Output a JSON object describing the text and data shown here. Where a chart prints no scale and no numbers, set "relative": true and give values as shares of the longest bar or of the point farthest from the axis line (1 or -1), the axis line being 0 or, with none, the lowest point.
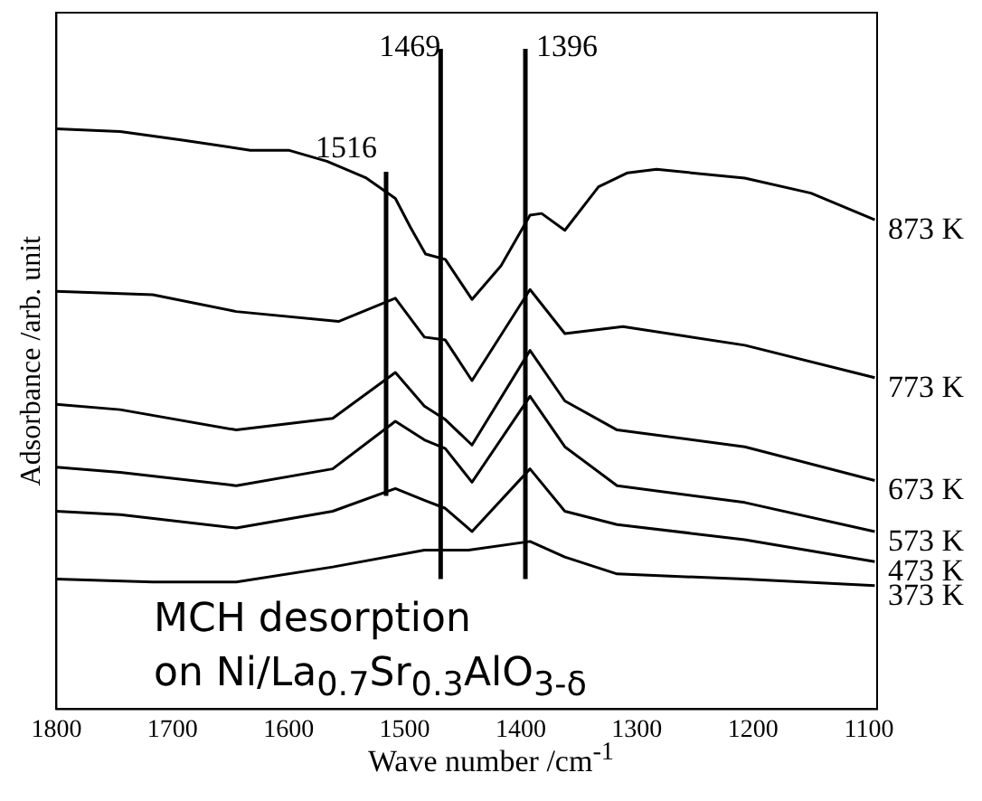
{
  "chart_data": {
    "type": "line",
    "relative": true,
    "xlabel": "Wave number /cm$^{-1}$",
    "ylabel": "Adsorbance /arb. unit",
    "xlim": [
      1800,
      1093
    ],
    "xticks": [
      1800,
      1700,
      1600,
      1500,
      1400,
      1300,
      1200,
      1100
    ],
    "grid": false,
    "legend": false,
    "marker": "none",
    "line_style": "solid",
    "series": [
      {
        "name": "873 K",
        "color": "#000000",
        "x": [
          1800,
          1745,
          1690,
          1633,
          1600,
          1567,
          1533,
          1508,
          1495,
          1482,
          1465,
          1442,
          1417,
          1392,
          1382,
          1362,
          1333,
          1308,
          1283,
          1207,
          1150,
          1095
        ],
        "values": [
          1.0,
          0.995,
          0.98,
          0.963,
          0.963,
          0.944,
          0.915,
          0.88,
          0.83,
          0.784,
          0.775,
          0.706,
          0.764,
          0.851,
          0.854,
          0.825,
          0.9,
          0.924,
          0.93,
          0.915,
          0.889,
          0.843
        ]
      },
      {
        "name": "773 K",
        "color": "#000000",
        "x": [
          1800,
          1717,
          1645,
          1557,
          1508,
          1483,
          1465,
          1442,
          1392,
          1362,
          1312,
          1207,
          1095
        ],
        "values": [
          0.72,
          0.714,
          0.685,
          0.668,
          0.708,
          0.641,
          0.636,
          0.566,
          0.723,
          0.647,
          0.659,
          0.627,
          0.571
        ]
      },
      {
        "name": "673 K",
        "color": "#000000",
        "x": [
          1800,
          1745,
          1645,
          1562,
          1508,
          1483,
          1465,
          1442,
          1392,
          1362,
          1317,
          1207,
          1095
        ],
        "values": [
          0.525,
          0.516,
          0.481,
          0.501,
          0.58,
          0.522,
          0.499,
          0.455,
          0.618,
          0.531,
          0.481,
          0.452,
          0.394
        ]
      },
      {
        "name": "573 K",
        "color": "#000000",
        "x": [
          1800,
          1745,
          1645,
          1562,
          1508,
          1483,
          1465,
          1442,
          1392,
          1362,
          1317,
          1207,
          1095
        ],
        "values": [
          0.417,
          0.408,
          0.385,
          0.414,
          0.496,
          0.464,
          0.449,
          0.391,
          0.539,
          0.452,
          0.385,
          0.356,
          0.306
        ]
      },
      {
        "name": "473 K",
        "color": "#000000",
        "x": [
          1800,
          1745,
          1645,
          1562,
          1508,
          1483,
          1465,
          1442,
          1392,
          1362,
          1317,
          1207,
          1095
        ],
        "values": [
          0.341,
          0.335,
          0.312,
          0.341,
          0.38,
          0.36,
          0.346,
          0.306,
          0.414,
          0.341,
          0.318,
          0.292,
          0.254
        ]
      },
      {
        "name": "373 K",
        "color": "#000000",
        "x": [
          1800,
          1717,
          1645,
          1562,
          1483,
          1445,
          1392,
          1362,
          1317,
          1207,
          1095
        ],
        "values": [
          0.224,
          0.219,
          0.219,
          0.245,
          0.274,
          0.274,
          0.289,
          0.262,
          0.233,
          0.224,
          0.213
        ]
      }
    ],
    "ref_lines": [
      {
        "axis": "x",
        "value": 1516,
        "label": "1516"
      },
      {
        "axis": "x",
        "value": 1469,
        "label": "1469"
      },
      {
        "axis": "x",
        "value": 1396,
        "label": "1396"
      }
    ],
    "annotations": [
      "MCH desorption",
      "on Ni/La$_{0.7}$Sr$_{0.3}$AlO$_{3-δ}$"
    ]
  }
}
